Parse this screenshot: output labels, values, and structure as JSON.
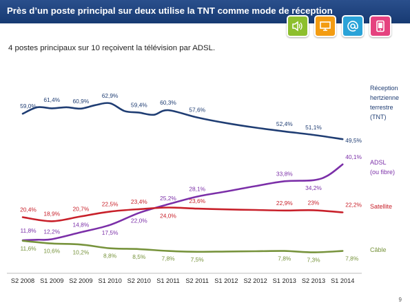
{
  "header": {
    "title": "Près d’un poste principal sur deux utilise la TNT comme mode de réception",
    "icons": [
      "speaker-icon",
      "tv-icon",
      "at-sign-icon",
      "tablet-icon"
    ],
    "icon_colors": [
      "#8dbf2e",
      "#f39c12",
      "#2aa3d8",
      "#e5427f"
    ]
  },
  "subtitle": "4 postes principaux sur 10 reçoivent la télévision  par ADSL.",
  "page_number": "9",
  "chart_data": {
    "type": "line",
    "categories": [
      "S2 2008",
      "S1 2009",
      "S2 2009",
      "S1 2010",
      "S2 2010",
      "S1 2011",
      "S2 2011",
      "S1 2012",
      "S2 2012",
      "S1 2013",
      "S2 2013",
      "S1 2014"
    ],
    "ylim": [
      0,
      70
    ],
    "grid": false,
    "legend": "right",
    "series": [
      {
        "name": "Réception hertzienne terrestre (TNT)",
        "legend_lines": [
          "Réception",
          "hertzienne",
          "terrestre",
          "(TNT)"
        ],
        "color": "#1f3d73",
        "points": [
          [
            0,
            59.0
          ],
          [
            0.5,
            61.4
          ],
          [
            1,
            61.0
          ],
          [
            1.5,
            61.4
          ],
          [
            2,
            60.9
          ],
          [
            2.5,
            62.2
          ],
          [
            3,
            62.9
          ],
          [
            3.5,
            60.0
          ],
          [
            4,
            59.4
          ],
          [
            4.5,
            58.6
          ],
          [
            5,
            60.3
          ],
          [
            6,
            57.6
          ],
          [
            7,
            55.5
          ],
          [
            8,
            53.8
          ],
          [
            9,
            52.4
          ],
          [
            10,
            51.1
          ],
          [
            11,
            49.5
          ]
        ],
        "labels": [
          {
            "x": 0,
            "v": 59.0,
            "text": "59,0%"
          },
          {
            "x": 1,
            "v": 61.4,
            "text": "61,4%"
          },
          {
            "x": 2,
            "v": 60.9,
            "text": "60,9%"
          },
          {
            "x": 3,
            "v": 62.9,
            "text": "62,9%"
          },
          {
            "x": 4,
            "v": 59.4,
            "text": "59,4%"
          },
          {
            "x": 5,
            "v": 60.3,
            "text": "60,3%"
          },
          {
            "x": 6,
            "v": 57.6,
            "text": "57,6%"
          },
          {
            "x": 9,
            "v": 52.4,
            "text": "52,4%"
          },
          {
            "x": 10,
            "v": 51.1,
            "text": "51,1%"
          },
          {
            "x": 11,
            "v": 49.5,
            "text": "49,5%"
          }
        ]
      },
      {
        "name": "ADSL (ou fibre)",
        "legend_lines": [
          "ADSL",
          "(ou fibre)"
        ],
        "color": "#7b2fa8",
        "points": [
          [
            0,
            11.8
          ],
          [
            0.5,
            12.0
          ],
          [
            1,
            12.2
          ],
          [
            2,
            14.8
          ],
          [
            3,
            17.5
          ],
          [
            4,
            22.0
          ],
          [
            5,
            25.2
          ],
          [
            6,
            28.1
          ],
          [
            7,
            30.0
          ],
          [
            8,
            32.0
          ],
          [
            9,
            33.8
          ],
          [
            10,
            34.2
          ],
          [
            10.5,
            36.0
          ],
          [
            11,
            40.1
          ]
        ],
        "labels": [
          {
            "x": 0,
            "v": 11.8,
            "text": "11,8%"
          },
          {
            "x": 1,
            "v": 12.2,
            "text": "12,2%"
          },
          {
            "x": 2,
            "v": 14.8,
            "text": "14,8%"
          },
          {
            "x": 3,
            "v": 17.5,
            "text": "17,5%"
          },
          {
            "x": 4,
            "v": 22.0,
            "text": "22,0%"
          },
          {
            "x": 5,
            "v": 25.2,
            "text": "25,2%"
          },
          {
            "x": 6,
            "v": 28.1,
            "text": "28,1%"
          },
          {
            "x": 9,
            "v": 33.8,
            "text": "33,8%"
          },
          {
            "x": 10,
            "v": 34.2,
            "text": "34,2%"
          },
          {
            "x": 11,
            "v": 40.1,
            "text": "40,1%"
          }
        ]
      },
      {
        "name": "Satellite",
        "legend_lines": [
          "Satellite"
        ],
        "color": "#c8202a",
        "points": [
          [
            0,
            20.4
          ],
          [
            1,
            18.9
          ],
          [
            2,
            20.7
          ],
          [
            3,
            22.5
          ],
          [
            4,
            23.4
          ],
          [
            5,
            24.0
          ],
          [
            6,
            23.6
          ],
          [
            7,
            23.3
          ],
          [
            8,
            23.1
          ],
          [
            9,
            22.9
          ],
          [
            10,
            23.0
          ],
          [
            11,
            22.2
          ]
        ],
        "labels": [
          {
            "x": 0,
            "v": 20.4,
            "text": "20,4%"
          },
          {
            "x": 1,
            "v": 18.9,
            "text": "18,9%"
          },
          {
            "x": 2,
            "v": 20.7,
            "text": "20,7%"
          },
          {
            "x": 3,
            "v": 22.5,
            "text": "22,5%"
          },
          {
            "x": 4,
            "v": 23.4,
            "text": "23,4%"
          },
          {
            "x": 5,
            "v": 24.0,
            "text": "24,0%"
          },
          {
            "x": 6,
            "v": 23.6,
            "text": "23,6%"
          },
          {
            "x": 9,
            "v": 22.9,
            "text": "22,9%"
          },
          {
            "x": 10,
            "v": 23.0,
            "text": "23%"
          },
          {
            "x": 11,
            "v": 22.2,
            "text": "22,2%"
          }
        ]
      },
      {
        "name": "Câble",
        "legend_lines": [
          "Câble"
        ],
        "color": "#77933c",
        "points": [
          [
            0,
            11.6
          ],
          [
            1,
            10.6
          ],
          [
            2,
            10.2
          ],
          [
            3,
            8.8
          ],
          [
            4,
            8.5
          ],
          [
            5,
            7.8
          ],
          [
            6,
            7.5
          ],
          [
            7,
            7.6
          ],
          [
            8,
            7.7
          ],
          [
            9,
            7.8
          ],
          [
            10,
            7.3
          ],
          [
            11,
            7.8
          ]
        ],
        "labels": [
          {
            "x": 0,
            "v": 11.6,
            "text": "11,6%"
          },
          {
            "x": 1,
            "v": 10.6,
            "text": "10,6%"
          },
          {
            "x": 2,
            "v": 10.2,
            "text": "10,2%"
          },
          {
            "x": 3,
            "v": 8.8,
            "text": "8,8%"
          },
          {
            "x": 4,
            "v": 8.5,
            "text": "8,5%"
          },
          {
            "x": 5,
            "v": 7.8,
            "text": "7,8%"
          },
          {
            "x": 6,
            "v": 7.5,
            "text": "7,5%"
          },
          {
            "x": 9,
            "v": 7.8,
            "text": "7,8%"
          },
          {
            "x": 10,
            "v": 7.3,
            "text": "7,3%"
          },
          {
            "x": 11,
            "v": 7.8,
            "text": "7,8%"
          }
        ]
      }
    ]
  }
}
